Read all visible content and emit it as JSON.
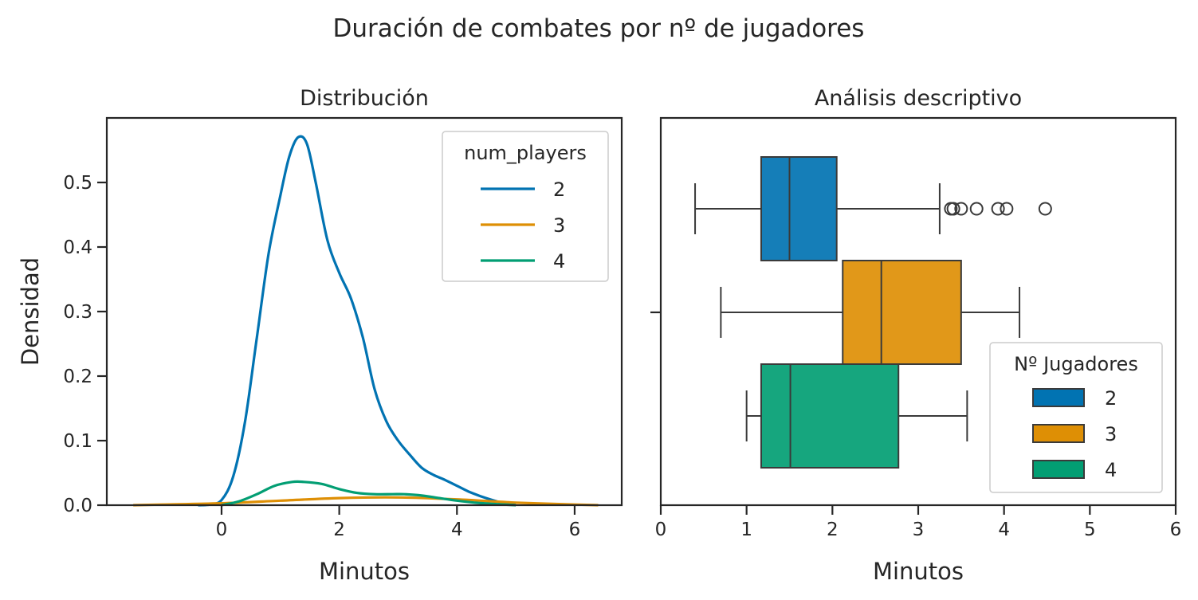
{
  "figure": {
    "suptitle": "Duración de combates por nº de jugadores"
  },
  "chart_data": [
    {
      "type": "line",
      "subtype": "kde",
      "title": "Distribución",
      "xlabel": "Minutos",
      "ylabel": "Densidad",
      "xlim": [
        -1.95,
        6.8
      ],
      "ylim": [
        0,
        0.6
      ],
      "xticks": [
        "0",
        "2",
        "4",
        "6"
      ],
      "yticks": [
        "0.0",
        "0.1",
        "0.2",
        "0.3",
        "0.4",
        "0.5"
      ],
      "grid": false,
      "legend": {
        "title": "num_players",
        "position": "top-right"
      },
      "series": [
        {
          "name": "2",
          "color": "#0173b2",
          "points": [
            [
              -0.4,
              0.0
            ],
            [
              -0.2,
              0.001
            ],
            [
              0.0,
              0.008
            ],
            [
              0.2,
              0.045
            ],
            [
              0.4,
              0.13
            ],
            [
              0.6,
              0.26
            ],
            [
              0.8,
              0.39
            ],
            [
              1.0,
              0.48
            ],
            [
              1.15,
              0.54
            ],
            [
              1.3,
              0.57
            ],
            [
              1.45,
              0.56
            ],
            [
              1.6,
              0.5
            ],
            [
              1.8,
              0.41
            ],
            [
              2.0,
              0.36
            ],
            [
              2.2,
              0.32
            ],
            [
              2.4,
              0.26
            ],
            [
              2.6,
              0.18
            ],
            [
              2.8,
              0.13
            ],
            [
              3.0,
              0.1
            ],
            [
              3.2,
              0.078
            ],
            [
              3.4,
              0.058
            ],
            [
              3.6,
              0.047
            ],
            [
              3.8,
              0.039
            ],
            [
              4.0,
              0.03
            ],
            [
              4.2,
              0.021
            ],
            [
              4.4,
              0.014
            ],
            [
              4.6,
              0.008
            ],
            [
              4.8,
              0.003
            ],
            [
              5.0,
              0.0
            ]
          ]
        },
        {
          "name": "3",
          "color": "#de8f05",
          "points": [
            [
              -1.5,
              0.0
            ],
            [
              -1.0,
              0.001
            ],
            [
              0.0,
              0.003
            ],
            [
              1.0,
              0.007
            ],
            [
              2.0,
              0.011
            ],
            [
              3.0,
              0.012
            ],
            [
              4.0,
              0.009
            ],
            [
              5.0,
              0.004
            ],
            [
              6.0,
              0.001
            ],
            [
              6.4,
              0.0
            ]
          ]
        },
        {
          "name": "4",
          "color": "#029e73",
          "points": [
            [
              0.0,
              0.0
            ],
            [
              0.3,
              0.006
            ],
            [
              0.6,
              0.017
            ],
            [
              0.9,
              0.03
            ],
            [
              1.2,
              0.036
            ],
            [
              1.4,
              0.036
            ],
            [
              1.7,
              0.033
            ],
            [
              2.0,
              0.025
            ],
            [
              2.3,
              0.019
            ],
            [
              2.6,
              0.017
            ],
            [
              2.9,
              0.017
            ],
            [
              3.1,
              0.017
            ],
            [
              3.4,
              0.015
            ],
            [
              3.7,
              0.011
            ],
            [
              4.0,
              0.007
            ],
            [
              4.3,
              0.004
            ],
            [
              4.6,
              0.002
            ],
            [
              5.0,
              0.0
            ]
          ]
        }
      ]
    },
    {
      "type": "box",
      "orientation": "horizontal",
      "title": "Análisis descriptivo",
      "xlabel": "Minutos",
      "ylabel": "",
      "xlim": [
        0,
        6
      ],
      "xticks": [
        "0",
        "1",
        "2",
        "3",
        "4",
        "5",
        "6"
      ],
      "grid": false,
      "legend": {
        "title": "Nº Jugadores",
        "position": "lower-right"
      },
      "series": [
        {
          "name": "2",
          "color": "#0173b2",
          "min": 0.4,
          "q1": 1.17,
          "median": 1.5,
          "q3": 2.05,
          "max": 3.25,
          "outliers": [
            3.38,
            3.41,
            3.5,
            3.68,
            3.93,
            4.03,
            4.48
          ]
        },
        {
          "name": "3",
          "color": "#de8f05",
          "min": 0.7,
          "q1": 2.12,
          "median": 2.57,
          "q3": 3.5,
          "max": 4.18,
          "outliers": []
        },
        {
          "name": "4",
          "color": "#029e73",
          "min": 1.0,
          "q1": 1.17,
          "median": 1.51,
          "q3": 2.77,
          "max": 3.57,
          "outliers": []
        }
      ]
    }
  ]
}
